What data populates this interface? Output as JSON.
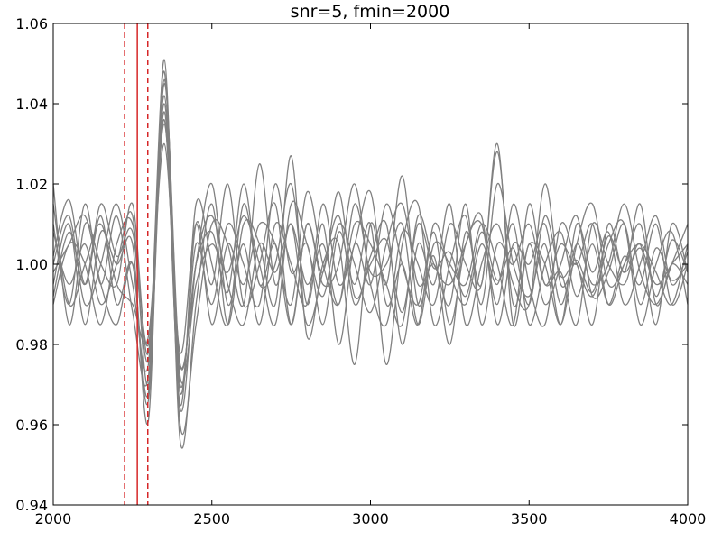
{
  "chart_data": {
    "type": "line",
    "title": "snr=5, fmin=2000",
    "xlabel": "",
    "ylabel": "",
    "xlim": [
      2000,
      4000
    ],
    "ylim": [
      0.94,
      1.06
    ],
    "xticks": [
      2000,
      2500,
      3000,
      3500,
      4000
    ],
    "yticks": [
      0.94,
      0.96,
      0.98,
      1.0,
      1.02,
      1.04,
      1.06
    ],
    "ytick_labels": [
      "0.94",
      "0.96",
      "0.98",
      "1.00",
      "1.02",
      "1.04",
      "1.06"
    ],
    "grid": false,
    "colors": {
      "series": "#808080",
      "markers": "#d62728",
      "axes": "#000000"
    },
    "vertical_lines": [
      {
        "x": 2265,
        "style": "solid"
      },
      {
        "x": 2225,
        "style": "dashed"
      },
      {
        "x": 2298,
        "style": "dashed"
      }
    ],
    "series": [
      {
        "values": [
          1.002,
          1.016,
          0.995,
          1.012,
          0.99,
          1.0,
          0.966,
          1.045,
          0.975,
          1.0,
          1.008,
          0.993,
          1.02,
          0.995,
          1.005,
          0.985,
          1.01,
          0.998,
          1.018,
          0.992,
          1.0,
          1.006,
          0.988,
          1.01,
          0.999,
          1.003,
          0.992,
          1.008,
          0.996,
          1.004,
          0.99,
          1.012,
          0.997,
          1.001,
          0.993,
          1.007,
          0.998,
          1.004,
          0.995,
          1.0,
          1.005
        ]
      },
      {
        "values": [
          0.995,
          1.01,
          0.985,
          1.008,
          1.0,
          1.005,
          0.961,
          1.051,
          0.956,
          0.99,
          1.015,
          0.985,
          1.01,
          1.005,
          0.99,
          1.027,
          0.982,
          1.0,
          1.005,
          0.975,
          1.01,
          0.995,
          1.022,
          0.99,
          1.002,
          0.98,
          1.008,
          0.995,
          1.03,
          0.985,
          1.005,
          0.99,
          1.0,
          1.012,
          0.992,
          0.998,
          1.01,
          0.99,
          1.004,
          0.996,
          1.0
        ]
      },
      {
        "values": [
          1.01,
          0.99,
          1.015,
          0.995,
          1.012,
          0.988,
          0.972,
          1.04,
          0.968,
          1.01,
          0.995,
          1.02,
          0.99,
          1.0,
          1.015,
          0.985,
          1.01,
          0.995,
          1.0,
          1.02,
          0.995,
          0.985,
          1.008,
          1.0,
          0.99,
          1.01,
          1.0,
          0.995,
          1.028,
          0.99,
          1.005,
          1.0,
          0.985,
          1.005,
          1.015,
          0.995,
          1.0,
          1.01,
          0.992,
          1.006,
          0.998
        ]
      },
      {
        "values": [
          0.99,
          1.005,
          1.0,
          0.985,
          1.005,
          1.01,
          0.98,
          1.035,
          0.975,
          1.0,
          1.02,
          0.99,
          1.005,
          0.985,
          1.01,
          1.0,
          0.99,
          1.015,
          0.995,
          1.005,
          1.018,
          0.99,
          1.0,
          0.985,
          1.01,
          0.998,
          0.99,
          1.005,
          0.995,
          1.01,
          0.985,
          1.0,
          1.008,
          0.992,
          1.005,
          0.99,
          1.002,
          0.995,
          1.01,
          0.99,
          1.0
        ]
      },
      {
        "values": [
          1.02,
          0.985,
          1.01,
          1.0,
          0.995,
          1.015,
          0.978,
          1.048,
          0.96,
          0.985,
          1.01,
          1.005,
          0.99,
          1.025,
          0.995,
          1.01,
          0.985,
          0.998,
          1.012,
          0.99,
          1.002,
          1.01,
          0.98,
          1.005,
          0.995,
          1.015,
          0.985,
          1.0,
          1.01,
          0.995,
          0.99,
          1.02,
          0.995,
          1.0,
          0.985,
          1.01,
          0.998,
          1.015,
          0.99,
          1.0,
          0.995
        ]
      },
      {
        "values": [
          1.0,
          1.012,
          0.99,
          1.0,
          1.015,
          0.995,
          0.975,
          1.042,
          0.97,
          1.005,
          0.99,
          1.01,
          1.0,
          0.99,
          1.02,
          0.998,
          1.005,
          0.985,
          1.008,
          0.995,
          1.01,
          0.975,
          1.005,
          1.015,
          0.985,
          1.0,
          1.012,
          0.99,
          1.02,
          1.0,
          0.992,
          1.005,
          0.985,
          1.01,
          0.998,
          1.008,
          0.99,
          1.0,
          1.012,
          0.995,
          1.003
        ]
      },
      {
        "values": [
          1.008,
          0.995,
          1.005,
          0.99,
          1.0,
          1.012,
          0.97,
          1.038,
          0.965,
          1.015,
          1.0,
          0.985,
          1.015,
          0.995,
          1.0,
          1.02,
          0.99,
          1.01,
          0.98,
          1.005,
          0.995,
          1.015,
          1.0,
          0.99,
          1.008,
          0.985,
          1.005,
          1.01,
          0.99,
          1.015,
          0.995,
          0.985,
          1.01,
          1.0,
          0.992,
          1.005,
          1.01,
          0.985,
          1.0,
          1.008,
          0.99
        ]
      },
      {
        "values": [
          0.998,
          1.005,
          1.012,
          0.995,
          0.985,
          1.0,
          0.968,
          1.046,
          0.972,
          0.995,
          1.005,
          0.998,
          1.012,
          1.0,
          0.985,
          1.015,
          1.005,
          0.992,
          1.01,
          1.0,
          0.988,
          1.005,
          1.015,
          0.995,
          1.0,
          0.99,
          1.015,
          0.985,
          1.005,
          1.0,
          1.01,
          0.995,
          0.998,
          0.985,
          1.01,
          1.0,
          0.995,
          1.005,
          0.985,
          1.01,
          0.998
        ]
      },
      {
        "values": [
          1.015,
          0.99,
          1.0,
          1.01,
          0.995,
          0.99,
          0.982,
          1.03,
          0.978,
          1.01,
          0.985,
          1.005,
          0.995,
          1.01,
          1.005,
          0.99,
          1.018,
          1.0,
          0.99,
          1.01,
          1.005,
          0.995,
          0.985,
          1.012,
          1.0,
          0.995,
          1.005,
          1.012,
          0.985,
          1.005,
          1.0,
          1.01,
          0.99,
          1.005,
          0.995,
          1.0,
          1.015,
          0.998,
          0.99,
          1.0,
          1.01
        ]
      },
      {
        "values": [
          0.992,
          1.008,
          0.995,
          1.015,
          1.002,
          1.008,
          0.976,
          1.036,
          0.964,
          1.0,
          1.012,
          0.995,
          0.985,
          1.005,
          0.998,
          1.01,
          0.995,
          1.005,
          0.99,
          1.015,
          0.998,
          1.0,
          1.01,
          0.985,
          1.005,
          1.0,
          0.995,
          1.01,
          1.0,
          0.985,
          1.015,
          0.995,
          1.005,
          1.0,
          1.01,
          0.99,
          1.0,
          1.005,
          0.998,
          0.99,
          1.005
        ]
      }
    ]
  }
}
